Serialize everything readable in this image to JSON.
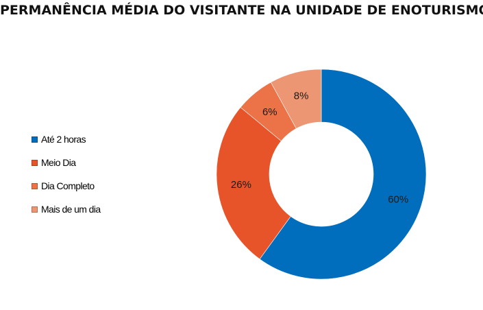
{
  "chart_data": {
    "type": "pie",
    "title": "PERMANÊNCIA MÉDIA DO VISITANTE NA UNIDADE DE ENOTURISMO",
    "donut": true,
    "legend_position": "left",
    "slices": [
      {
        "name": "Até 2 horas",
        "value": 60,
        "label": "60%",
        "color": "#006ebd"
      },
      {
        "name": "Meio Dia",
        "value": 26,
        "label": "26%",
        "color": "#e8542a"
      },
      {
        "name": "Dia Completo",
        "value": 6,
        "label": "6%",
        "color": "#ec7248"
      },
      {
        "name": "Mais de um dia",
        "value": 8,
        "label": "8%",
        "color": "#ec9673"
      }
    ]
  }
}
